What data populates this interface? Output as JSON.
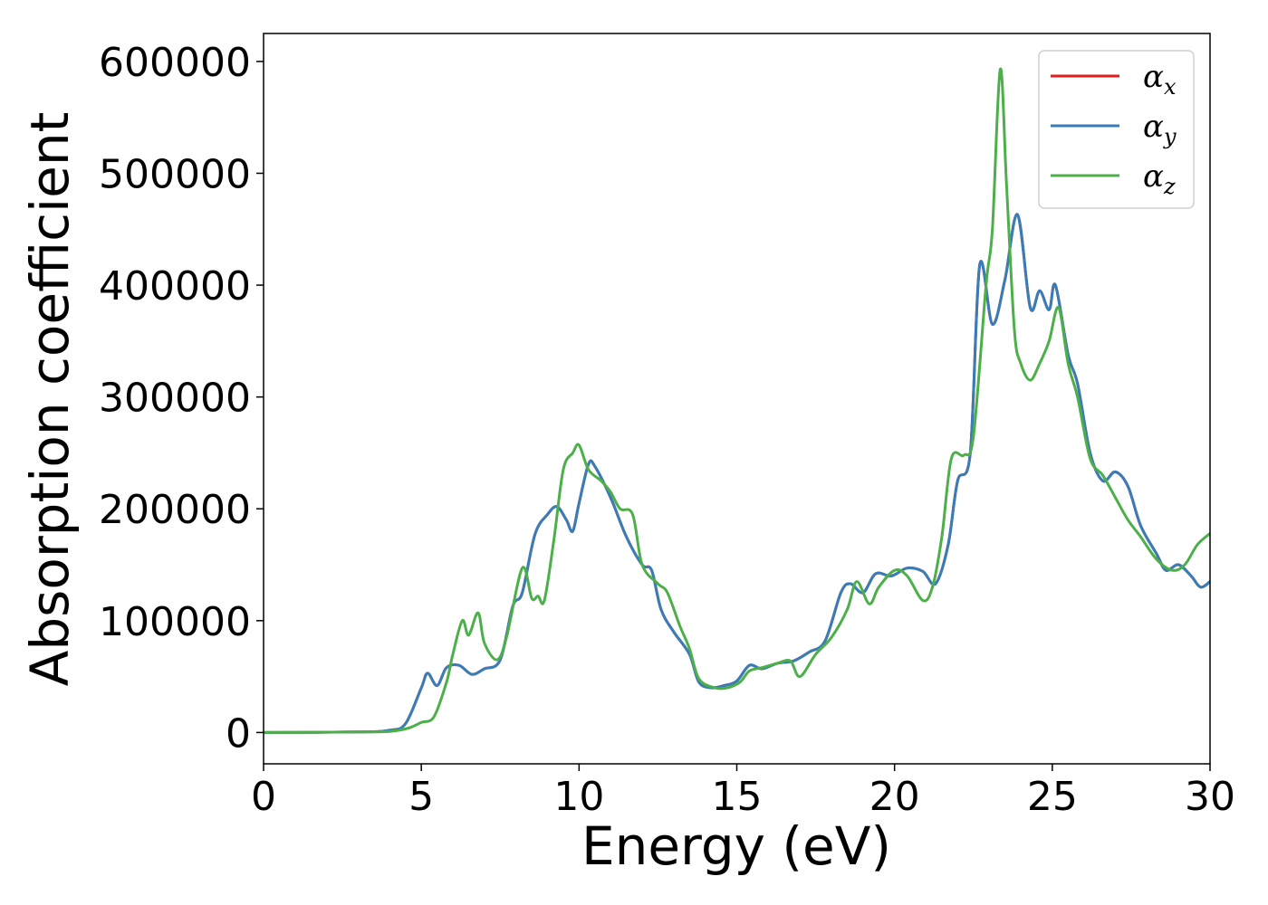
{
  "chart_data": {
    "type": "line",
    "xlabel": "Energy (eV)",
    "ylabel": "Absorption coefficient",
    "xlim": [
      0,
      30
    ],
    "ylim": [
      -28000,
      625000
    ],
    "xticks": [
      0,
      5,
      10,
      15,
      20,
      25,
      30
    ],
    "yticks": [
      0,
      100000,
      200000,
      300000,
      400000,
      500000,
      600000
    ],
    "grid": false,
    "legend_position": "top-right",
    "series": [
      {
        "name": "αx",
        "legend_base": "α",
        "legend_sub": "x",
        "color": "#e41a1c",
        "points": [
          [
            0,
            0
          ],
          [
            3,
            500
          ],
          [
            4,
            2000
          ],
          [
            4.5,
            8000
          ],
          [
            5.0,
            40000
          ],
          [
            5.2,
            53000
          ],
          [
            5.5,
            42000
          ],
          [
            5.8,
            58000
          ],
          [
            6.2,
            60000
          ],
          [
            6.6,
            52000
          ],
          [
            7.0,
            57000
          ],
          [
            7.5,
            65000
          ],
          [
            7.9,
            113000
          ],
          [
            8.2,
            125000
          ],
          [
            8.6,
            177000
          ],
          [
            9.0,
            195000
          ],
          [
            9.3,
            202000
          ],
          [
            9.6,
            190000
          ],
          [
            9.8,
            180000
          ],
          [
            10.0,
            205000
          ],
          [
            10.3,
            240000
          ],
          [
            10.5,
            238000
          ],
          [
            11.0,
            210000
          ],
          [
            11.5,
            175000
          ],
          [
            12.0,
            150000
          ],
          [
            12.3,
            145000
          ],
          [
            12.6,
            110000
          ],
          [
            13.0,
            90000
          ],
          [
            13.5,
            70000
          ],
          [
            13.8,
            45000
          ],
          [
            14.2,
            40000
          ],
          [
            14.6,
            42000
          ],
          [
            15.0,
            46000
          ],
          [
            15.4,
            60000
          ],
          [
            15.8,
            57000
          ],
          [
            16.3,
            62000
          ],
          [
            16.8,
            64000
          ],
          [
            17.3,
            72000
          ],
          [
            17.8,
            82000
          ],
          [
            18.3,
            125000
          ],
          [
            18.6,
            133000
          ],
          [
            19.0,
            125000
          ],
          [
            19.4,
            142000
          ],
          [
            19.9,
            140000
          ],
          [
            20.4,
            147000
          ],
          [
            20.9,
            144000
          ],
          [
            21.3,
            133000
          ],
          [
            21.7,
            168000
          ],
          [
            22.0,
            225000
          ],
          [
            22.4,
            250000
          ],
          [
            22.7,
            418000
          ],
          [
            23.1,
            365000
          ],
          [
            23.5,
            405000
          ],
          [
            23.9,
            463000
          ],
          [
            24.3,
            380000
          ],
          [
            24.6,
            395000
          ],
          [
            24.9,
            378000
          ],
          [
            25.1,
            400000
          ],
          [
            25.5,
            338000
          ],
          [
            25.8,
            312000
          ],
          [
            26.2,
            250000
          ],
          [
            26.6,
            225000
          ],
          [
            27.0,
            233000
          ],
          [
            27.4,
            220000
          ],
          [
            27.8,
            185000
          ],
          [
            28.3,
            160000
          ],
          [
            28.6,
            145000
          ],
          [
            29.0,
            150000
          ],
          [
            29.4,
            140000
          ],
          [
            29.7,
            130000
          ],
          [
            30.0,
            135000
          ]
        ]
      },
      {
        "name": "αy",
        "legend_base": "α",
        "legend_sub": "y",
        "color": "#377eb8",
        "points": [
          [
            0,
            0
          ],
          [
            3,
            500
          ],
          [
            4,
            2000
          ],
          [
            4.5,
            8000
          ],
          [
            5.0,
            40000
          ],
          [
            5.2,
            53000
          ],
          [
            5.5,
            42000
          ],
          [
            5.8,
            58000
          ],
          [
            6.2,
            60000
          ],
          [
            6.6,
            52000
          ],
          [
            7.0,
            57000
          ],
          [
            7.5,
            65000
          ],
          [
            7.9,
            113000
          ],
          [
            8.2,
            125000
          ],
          [
            8.6,
            177000
          ],
          [
            9.0,
            195000
          ],
          [
            9.3,
            202000
          ],
          [
            9.6,
            190000
          ],
          [
            9.8,
            180000
          ],
          [
            10.0,
            205000
          ],
          [
            10.3,
            240000
          ],
          [
            10.5,
            238000
          ],
          [
            11.0,
            210000
          ],
          [
            11.5,
            175000
          ],
          [
            12.0,
            150000
          ],
          [
            12.3,
            145000
          ],
          [
            12.6,
            110000
          ],
          [
            13.0,
            90000
          ],
          [
            13.5,
            70000
          ],
          [
            13.8,
            45000
          ],
          [
            14.2,
            40000
          ],
          [
            14.6,
            42000
          ],
          [
            15.0,
            46000
          ],
          [
            15.4,
            60000
          ],
          [
            15.8,
            57000
          ],
          [
            16.3,
            62000
          ],
          [
            16.8,
            64000
          ],
          [
            17.3,
            72000
          ],
          [
            17.8,
            82000
          ],
          [
            18.3,
            125000
          ],
          [
            18.6,
            133000
          ],
          [
            19.0,
            125000
          ],
          [
            19.4,
            142000
          ],
          [
            19.9,
            140000
          ],
          [
            20.4,
            147000
          ],
          [
            20.9,
            144000
          ],
          [
            21.3,
            133000
          ],
          [
            21.7,
            168000
          ],
          [
            22.0,
            225000
          ],
          [
            22.4,
            250000
          ],
          [
            22.7,
            418000
          ],
          [
            23.1,
            365000
          ],
          [
            23.5,
            405000
          ],
          [
            23.9,
            463000
          ],
          [
            24.3,
            380000
          ],
          [
            24.6,
            395000
          ],
          [
            24.9,
            378000
          ],
          [
            25.1,
            400000
          ],
          [
            25.5,
            338000
          ],
          [
            25.8,
            312000
          ],
          [
            26.2,
            250000
          ],
          [
            26.6,
            225000
          ],
          [
            27.0,
            233000
          ],
          [
            27.4,
            220000
          ],
          [
            27.8,
            185000
          ],
          [
            28.3,
            160000
          ],
          [
            28.6,
            145000
          ],
          [
            29.0,
            150000
          ],
          [
            29.4,
            140000
          ],
          [
            29.7,
            130000
          ],
          [
            30.0,
            135000
          ]
        ]
      },
      {
        "name": "αz",
        "legend_base": "α",
        "legend_sub": "z",
        "color": "#4daf4a",
        "points": [
          [
            0,
            0
          ],
          [
            3,
            500
          ],
          [
            4,
            1000
          ],
          [
            4.6,
            4000
          ],
          [
            5.0,
            9000
          ],
          [
            5.4,
            14000
          ],
          [
            5.8,
            45000
          ],
          [
            6.0,
            70000
          ],
          [
            6.3,
            100000
          ],
          [
            6.5,
            87000
          ],
          [
            6.8,
            107000
          ],
          [
            7.0,
            80000
          ],
          [
            7.4,
            65000
          ],
          [
            7.7,
            85000
          ],
          [
            8.2,
            147000
          ],
          [
            8.5,
            120000
          ],
          [
            8.7,
            122000
          ],
          [
            8.9,
            118000
          ],
          [
            9.2,
            172000
          ],
          [
            9.5,
            235000
          ],
          [
            9.8,
            250000
          ],
          [
            10.0,
            257000
          ],
          [
            10.3,
            235000
          ],
          [
            10.7,
            225000
          ],
          [
            11.0,
            215000
          ],
          [
            11.3,
            200000
          ],
          [
            11.7,
            195000
          ],
          [
            12.0,
            150000
          ],
          [
            12.5,
            133000
          ],
          [
            12.8,
            125000
          ],
          [
            13.2,
            95000
          ],
          [
            13.5,
            75000
          ],
          [
            13.8,
            48000
          ],
          [
            14.3,
            40000
          ],
          [
            14.7,
            40000
          ],
          [
            15.1,
            45000
          ],
          [
            15.4,
            55000
          ],
          [
            15.8,
            58000
          ],
          [
            16.3,
            62000
          ],
          [
            16.7,
            64000
          ],
          [
            17.0,
            50000
          ],
          [
            17.5,
            70000
          ],
          [
            18.0,
            85000
          ],
          [
            18.5,
            110000
          ],
          [
            18.8,
            135000
          ],
          [
            19.2,
            115000
          ],
          [
            19.5,
            130000
          ],
          [
            20.0,
            145000
          ],
          [
            20.4,
            140000
          ],
          [
            20.9,
            118000
          ],
          [
            21.2,
            130000
          ],
          [
            21.5,
            175000
          ],
          [
            21.8,
            245000
          ],
          [
            22.2,
            248000
          ],
          [
            22.5,
            265000
          ],
          [
            22.9,
            400000
          ],
          [
            23.1,
            450000
          ],
          [
            23.35,
            593000
          ],
          [
            23.55,
            490000
          ],
          [
            23.8,
            360000
          ],
          [
            24.0,
            330000
          ],
          [
            24.3,
            315000
          ],
          [
            24.6,
            330000
          ],
          [
            24.9,
            350000
          ],
          [
            25.2,
            380000
          ],
          [
            25.5,
            330000
          ],
          [
            25.8,
            300000
          ],
          [
            26.2,
            245000
          ],
          [
            26.6,
            230000
          ],
          [
            27.0,
            210000
          ],
          [
            27.4,
            190000
          ],
          [
            27.8,
            175000
          ],
          [
            28.3,
            155000
          ],
          [
            28.8,
            145000
          ],
          [
            29.2,
            150000
          ],
          [
            29.6,
            168000
          ],
          [
            30.0,
            178000
          ]
        ]
      }
    ]
  }
}
